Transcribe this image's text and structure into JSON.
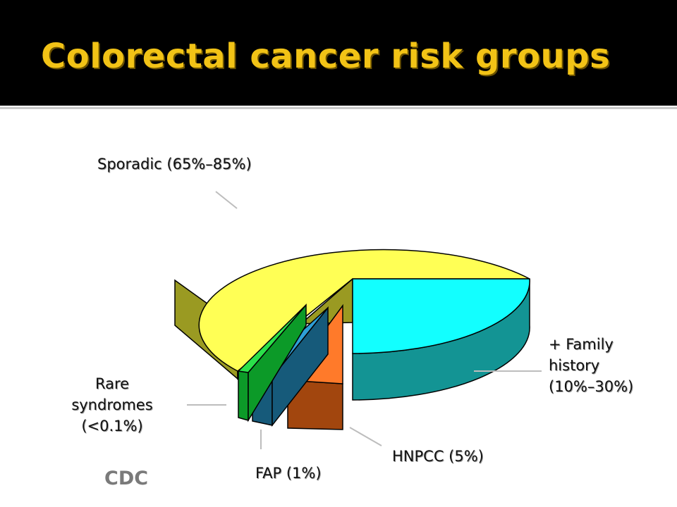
{
  "slide": {
    "title": "Colorectal cancer risk groups",
    "source": "CDC"
  },
  "colors": {
    "title": "#f2c316",
    "title_bar": "#000000"
  },
  "chart_data": {
    "type": "pie",
    "title": "",
    "style": "3d-exploded",
    "slices": [
      {
        "label": "Sporadic (65%–85%)",
        "range_pct": [
          65,
          85
        ],
        "color": "#ffff55",
        "side_color": "#9a9a22"
      },
      {
        "label": "+ Family history (10%–30%)",
        "range_pct": [
          10,
          30
        ],
        "color": "#12ffff",
        "side_color": "#139494"
      },
      {
        "label": "HNPCC (5%)",
        "value_pct": 5,
        "color": "#ff7a2a",
        "side_color": "#a2460e"
      },
      {
        "label": "FAP (1%)",
        "value_pct": 1,
        "color": "#2e9fd6",
        "side_color": "#165a7a"
      },
      {
        "label": "Rare syndromes (<0.1%)",
        "value_pct": 0.1,
        "color": "#2ae04a",
        "side_color": "#0c9a28"
      }
    ],
    "labels": {
      "sporadic": "Sporadic (65%–85%)",
      "family_1": "+ Family",
      "family_2": "history",
      "family_3": "(10%–30%)",
      "hnpcc": "HNPCC (5%)",
      "fap": "FAP (1%)",
      "rare_1": "Rare",
      "rare_2": "syndromes",
      "rare_3": "(<0.1%)"
    },
    "legend": "none"
  }
}
